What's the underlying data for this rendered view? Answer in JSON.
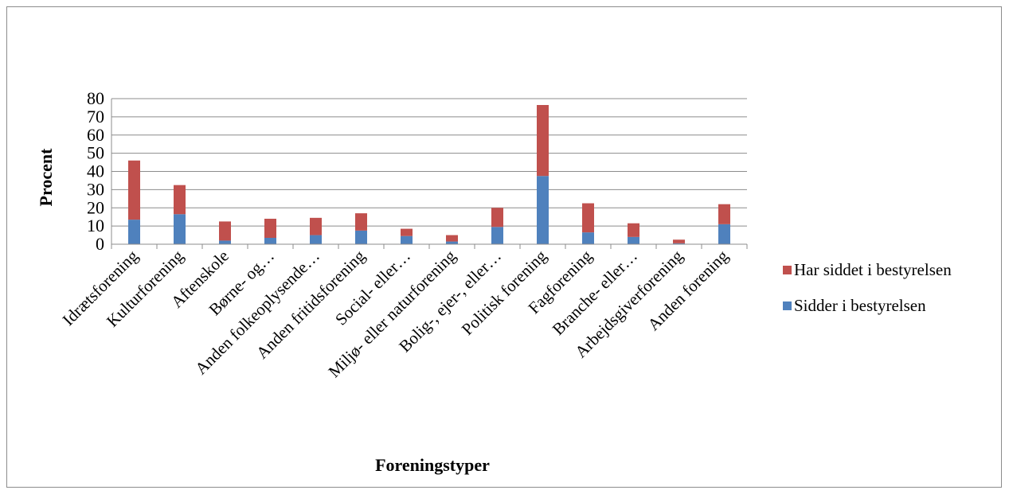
{
  "chart_data": {
    "type": "bar",
    "stacked": true,
    "title": "",
    "xlabel": "Foreningstyper",
    "ylabel": "Procent",
    "ylim": [
      0,
      80
    ],
    "yticks": [
      0,
      10,
      20,
      30,
      40,
      50,
      60,
      70,
      80
    ],
    "grid": true,
    "legend_position": "right",
    "categories": [
      "Idrætsforening",
      "Kulturforening",
      "Aftenskole",
      "Børne- og…",
      "Anden folkeoplysende…",
      "Anden fritidsforening",
      "Social- eller…",
      "Miljø- eller naturforening",
      "Bolig-, ejer-, eller…",
      "Politisk forening",
      "Fagforening",
      "Branche- eller…",
      "Arbejdsgiverforening",
      "Anden forening"
    ],
    "series": [
      {
        "name": "Sidder i bestyrelsen",
        "color": "#4f81bd",
        "values": [
          13.5,
          16.5,
          2,
          3.5,
          5,
          7.5,
          4.5,
          1.5,
          9.5,
          37.5,
          6.5,
          4,
          0.5,
          11
        ]
      },
      {
        "name": "Har siddet i bestyrelsen",
        "color": "#c0504d",
        "values": [
          32.5,
          16,
          10.5,
          10.5,
          9.5,
          9.5,
          4,
          3.5,
          10.5,
          39,
          16,
          7.5,
          2,
          11
        ]
      }
    ],
    "legend_order": [
      "Har siddet i bestyrelsen",
      "Sidder i bestyrelsen"
    ]
  }
}
